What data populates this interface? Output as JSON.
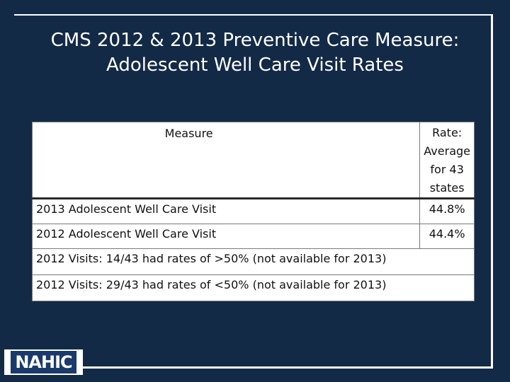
{
  "slide": {
    "title_line1": "CMS 2012 & 2013 Preventive Care Measure:",
    "title_line2": "Adolescent Well Care Visit Rates"
  },
  "table": {
    "header_measure": "Measure",
    "header_rate_line1": "Rate: Average",
    "header_rate_line2": "for  43 states",
    "rows": [
      {
        "measure": "2013 Adolescent Well Care Visit",
        "rate": "44.8%"
      },
      {
        "measure": "2012 Adolescent Well Care Visit",
        "rate": "44.4%"
      }
    ],
    "notes": [
      "2012 Visits: 14/43 had rates of >50% (not available for 2013)",
      "2012 Visits: 29/43 had rates of <50% (not available for 2013)"
    ]
  },
  "logo": {
    "text": "NAHIC"
  }
}
